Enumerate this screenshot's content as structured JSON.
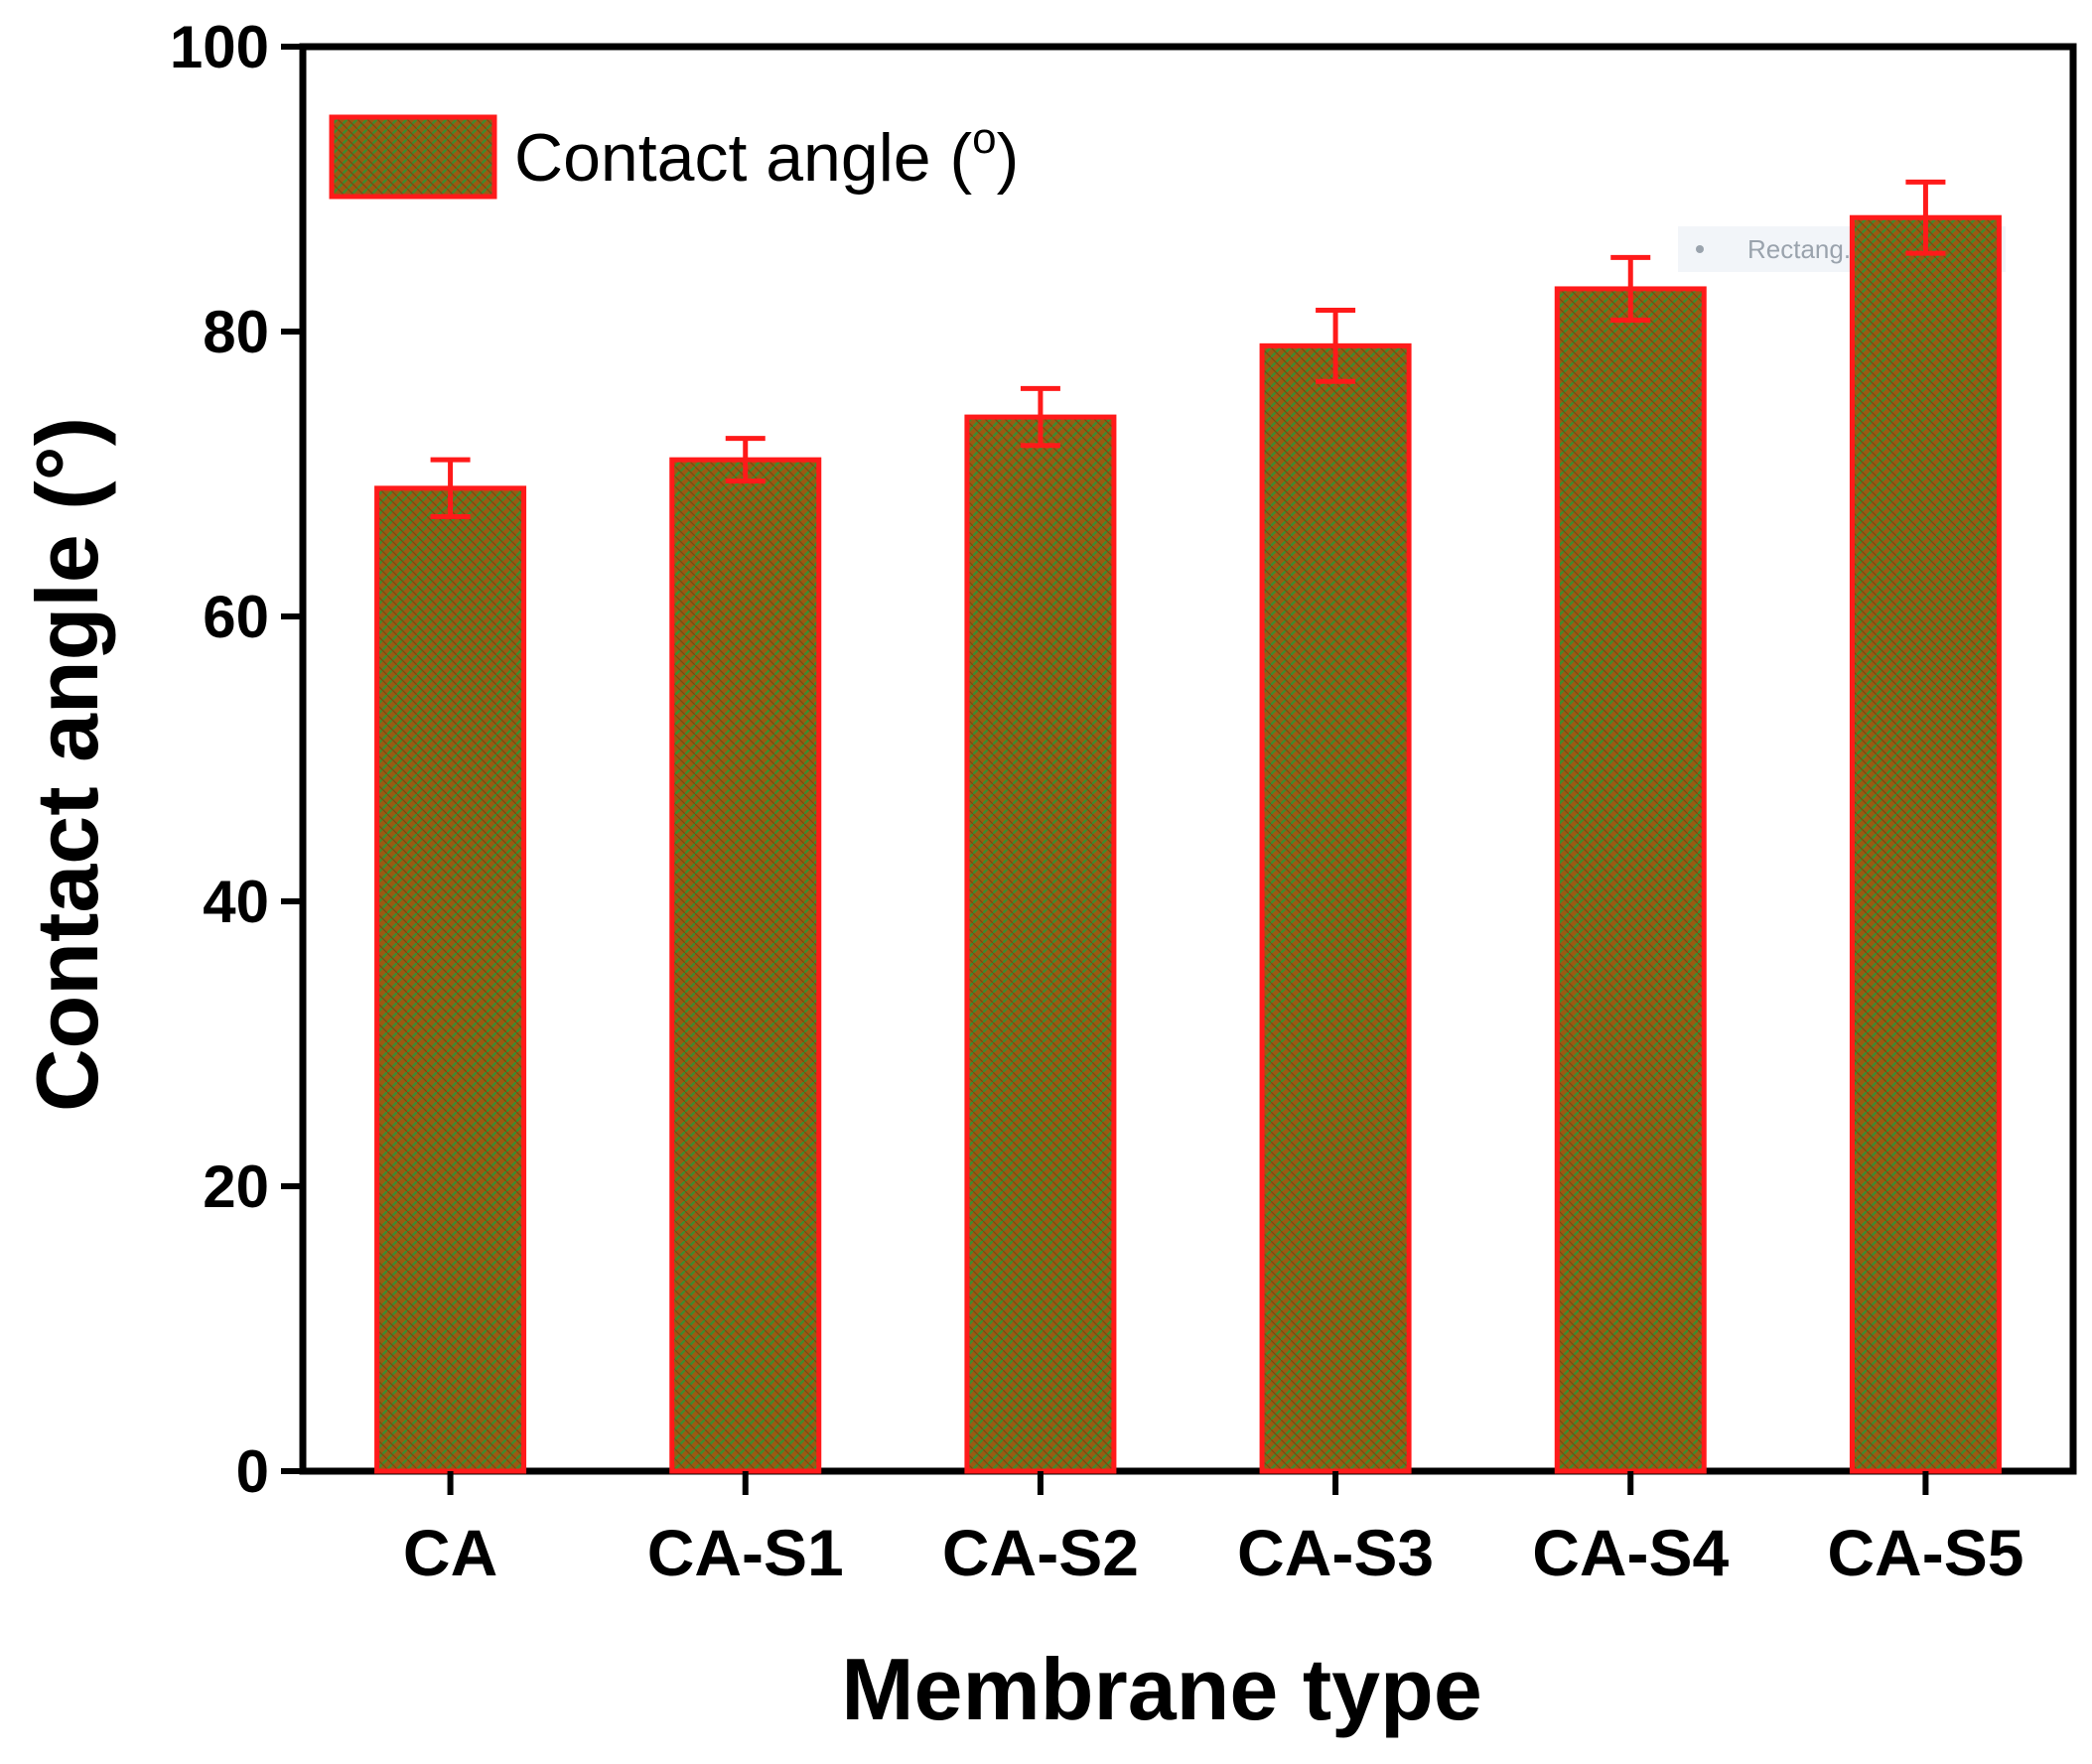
{
  "chart_data": {
    "type": "bar",
    "title": "",
    "xlabel": "Membrane type",
    "ylabel": "Contact angle (°)",
    "categories": [
      "CA",
      "CA-S1",
      "CA-S2",
      "CA-S3",
      "CA-S4",
      "CA-S5"
    ],
    "series": [
      {
        "name": "Contact angle (o)",
        "values": [
          69,
          71,
          74,
          79,
          83,
          88
        ],
        "errors": [
          2.0,
          1.5,
          2.0,
          2.5,
          2.2,
          2.5
        ]
      }
    ],
    "ylim": [
      0,
      100
    ],
    "yticks": [
      0,
      20,
      40,
      60,
      80,
      100
    ],
    "legend_position": "top-left",
    "grid": false
  },
  "legend": {
    "label_text": "Contact angle (",
    "label_sup": "o",
    "label_close": ")"
  },
  "watermark": {
    "text": "Rectang..."
  },
  "colors": {
    "bar_fill": "#9a5a12",
    "bar_hatch": "#3f8a2e",
    "bar_edge": "#ff1a1a",
    "error_bar": "#ff1a1a",
    "axis": "#000000"
  }
}
